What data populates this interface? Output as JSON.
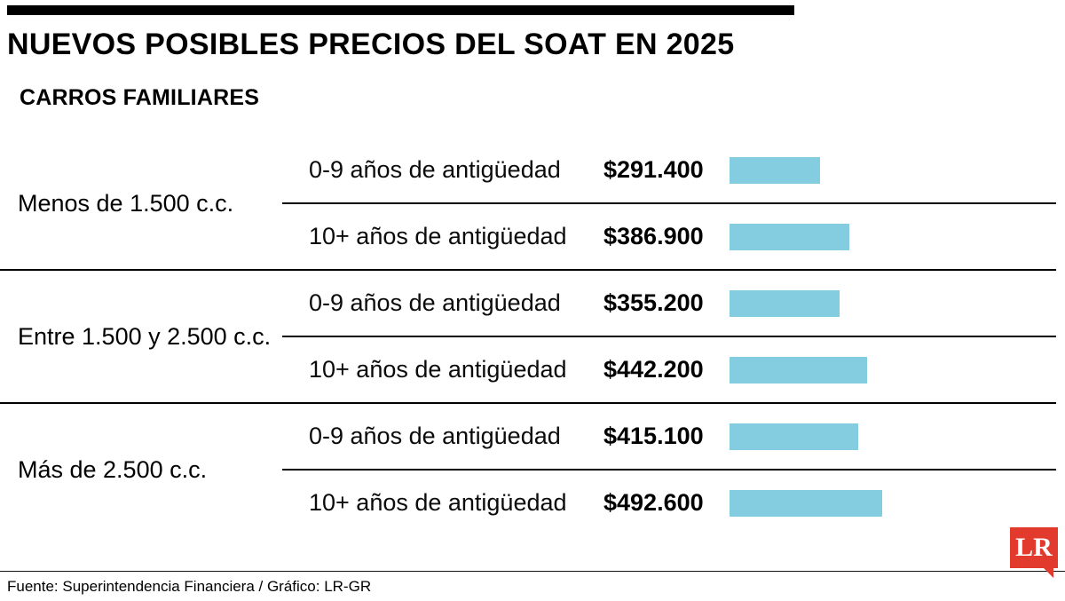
{
  "title": "NUEVOS POSIBLES PRECIOS DEL SOAT EN 2025",
  "section": "CARROS FAMILIARES",
  "footer": {
    "source": "Fuente: Superintendencia Financiera / Gráfico: LR-GR",
    "logo_text": "LR"
  },
  "colors": {
    "bar": "#84CCDF",
    "logo": "#E23B2E",
    "text": "#000000"
  },
  "chart_data": {
    "type": "bar",
    "title": "NUEVOS POSIBLES PRECIOS DEL SOAT EN 2025",
    "subtitle": "CARROS FAMILIARES",
    "unit": "COP",
    "orientation": "horizontal",
    "value_range": [
      0,
      500000
    ],
    "groups": [
      {
        "category": "Menos de 1.500 c.c.",
        "rows": [
          {
            "label": "0-9 años de antigüedad",
            "price_label": "$291.400",
            "value": 291400
          },
          {
            "label": "10+ años de antigüedad",
            "price_label": "$386.900",
            "value": 386900
          }
        ]
      },
      {
        "category": "Entre 1.500 y 2.500 c.c.",
        "rows": [
          {
            "label": "0-9 años de antigüedad",
            "price_label": "$355.200",
            "value": 355200
          },
          {
            "label": "10+ años de antigüedad",
            "price_label": "$442.200",
            "value": 442200
          }
        ]
      },
      {
        "category": "Más de 2.500 c.c.",
        "rows": [
          {
            "label": "0-9 años de antigüedad",
            "price_label": "$415.100",
            "value": 415100
          },
          {
            "label": "10+ años de antigüedad",
            "price_label": "$492.600",
            "value": 492600
          }
        ]
      }
    ]
  }
}
